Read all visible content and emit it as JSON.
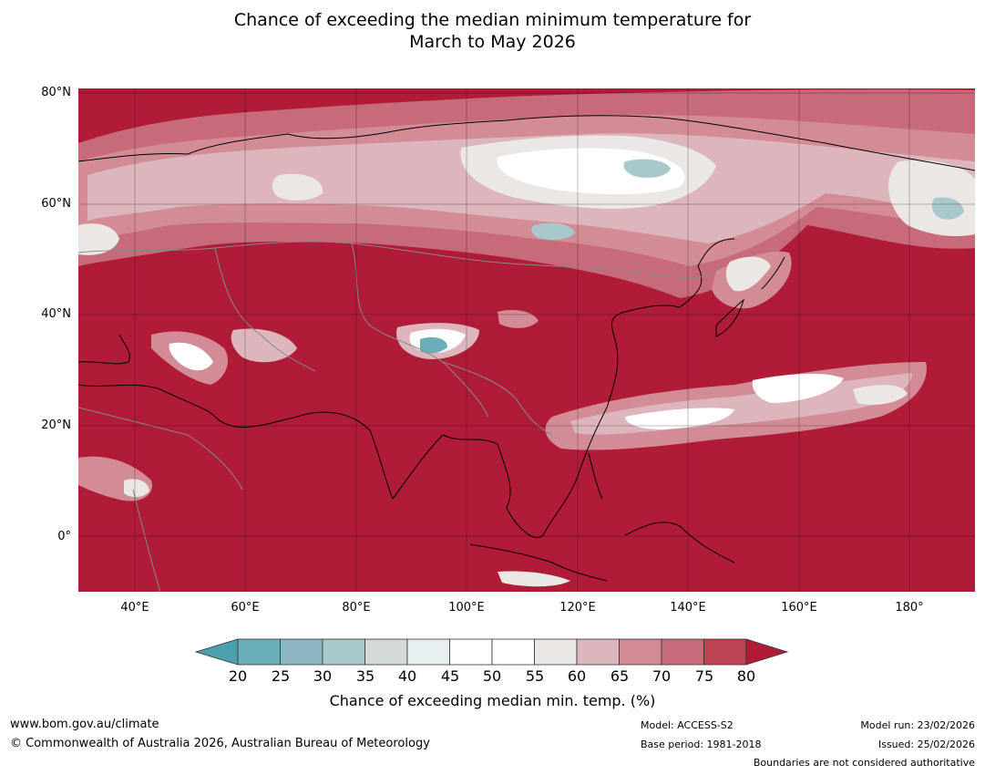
{
  "title": {
    "line1": "Chance of exceeding the median minimum temperature for",
    "line2": "March to May 2026"
  },
  "map": {
    "background_color": "#b01c38",
    "lat_labels": [
      "80°N",
      "60°N",
      "40°N",
      "20°N",
      "0°"
    ],
    "lon_labels": [
      "40°E",
      "60°E",
      "80°E",
      "100°E",
      "120°E",
      "140°E",
      "160°E",
      "180°"
    ]
  },
  "colorbar": {
    "ticks": [
      "20",
      "25",
      "30",
      "35",
      "40",
      "45",
      "50",
      "55",
      "60",
      "65",
      "70",
      "75",
      "80"
    ],
    "colors": [
      "#6aaeb9",
      "#8ab7c1",
      "#a9c8cb",
      "#d3d8d8",
      "#e8eff0",
      "#ffffff",
      "#ffffff",
      "#ebe7e5",
      "#ddb6bd",
      "#d38b96",
      "#c76a79",
      "#bd4350"
    ],
    "under_color": "#4fa0ae",
    "over_color": "#b01c38",
    "label": "Chance of exceeding median min. temp. (%)"
  },
  "footer": {
    "website": "www.bom.gov.au/climate",
    "copyright": "© Commonwealth of Australia 2026, Australian Bureau of Meteorology",
    "model": "Model: ACCESS-S2",
    "base_period": "Base period: 1981-2018",
    "model_run": "Model run: 23/02/2026",
    "issued": "Issued: 25/02/2026",
    "disclaimer": "Boundaries are not considered authoritative"
  }
}
